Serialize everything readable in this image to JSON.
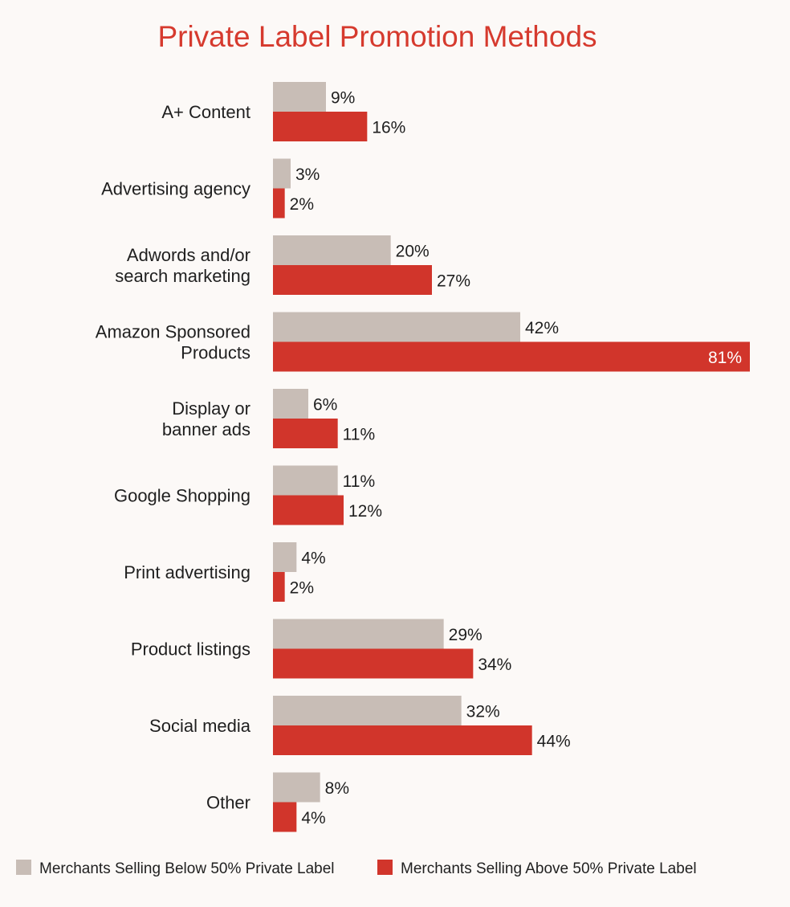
{
  "colors": {
    "background": "#fcf9f7",
    "title": "#d63a2e",
    "series_below": "#c8bdb6",
    "series_above": "#d1352b",
    "text": "#1f1f1f",
    "inner_label": "#ffffff"
  },
  "chart_data": {
    "type": "bar",
    "orientation": "horizontal",
    "title": "Private Label Promotion Methods",
    "xlabel": "",
    "ylabel": "",
    "value_suffix": "%",
    "xlim": [
      0,
      81
    ],
    "grid": false,
    "legend_placement": "bottom",
    "categories": [
      [
        "A+ Content"
      ],
      [
        "Advertising agency"
      ],
      [
        "Adwords and/or",
        "search marketing"
      ],
      [
        "Amazon Sponsored",
        "Products"
      ],
      [
        "Display or",
        "banner ads"
      ],
      [
        "Google Shopping"
      ],
      [
        "Print advertising"
      ],
      [
        "Product listings"
      ],
      [
        "Social media"
      ],
      [
        "Other"
      ]
    ],
    "series": [
      {
        "name": "Merchants Selling Below 50% Private Label",
        "values": [
          9,
          3,
          20,
          42,
          6,
          11,
          4,
          29,
          32,
          8
        ]
      },
      {
        "name": "Merchants Selling Above 50% Private Label",
        "values": [
          16,
          2,
          27,
          81,
          11,
          12,
          2,
          34,
          44,
          4
        ]
      }
    ]
  }
}
